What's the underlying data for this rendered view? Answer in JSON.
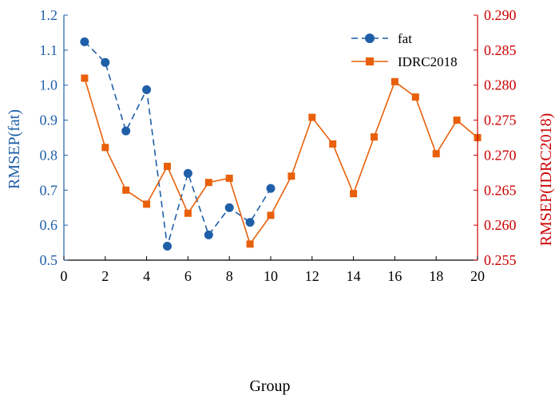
{
  "chart_data": {
    "type": "line",
    "xlabel": "Group",
    "ylabel_left": "RMSEP(fat)",
    "ylabel_right": "RMSEP(IDRC2018)",
    "xlim": [
      0,
      20
    ],
    "ylim_left": [
      0.5,
      1.2
    ],
    "ylim_right": [
      0.255,
      0.29
    ],
    "x_ticks": [
      "0",
      "2",
      "4",
      "6",
      "8",
      "10",
      "12",
      "14",
      "16",
      "18",
      "20"
    ],
    "y_left_ticks": [
      "0.5",
      "0.6",
      "0.7",
      "0.8",
      "0.9",
      "1.0",
      "1.1",
      "1.2"
    ],
    "y_right_ticks": [
      "0.255",
      "0.260",
      "0.265",
      "0.270",
      "0.275",
      "0.280",
      "0.285",
      "0.290"
    ],
    "grid": false,
    "legend_position": "top-right",
    "series": [
      {
        "name": "fat",
        "axis": "left",
        "color": "#1f5fa8",
        "line_style": "dashed",
        "marker": "circle",
        "x": [
          1,
          2,
          3,
          4,
          5,
          6,
          7,
          8,
          9,
          10
        ],
        "values": [
          1.124,
          1.065,
          0.869,
          0.987,
          0.54,
          0.748,
          0.572,
          0.65,
          0.608,
          0.705
        ]
      },
      {
        "name": "IDRC2018",
        "axis": "right",
        "color": "#e8600a",
        "line_style": "solid",
        "marker": "square",
        "x": [
          1,
          2,
          3,
          4,
          5,
          6,
          7,
          8,
          9,
          10,
          11,
          12,
          13,
          14,
          15,
          16,
          17,
          18,
          19,
          20
        ],
        "values": [
          0.281,
          0.2711,
          0.265,
          0.263,
          0.2684,
          0.2617,
          0.2661,
          0.2667,
          0.2573,
          0.2614,
          0.267,
          0.2754,
          0.2716,
          0.2645,
          0.2726,
          0.2805,
          0.2783,
          0.2702,
          0.275,
          0.2725
        ]
      }
    ]
  },
  "colors": {
    "left_axis": "#1f5fa8",
    "right_axis": "#cc0000",
    "fat_series": "#1f5fa8",
    "idrc_series": "#e8600a"
  }
}
